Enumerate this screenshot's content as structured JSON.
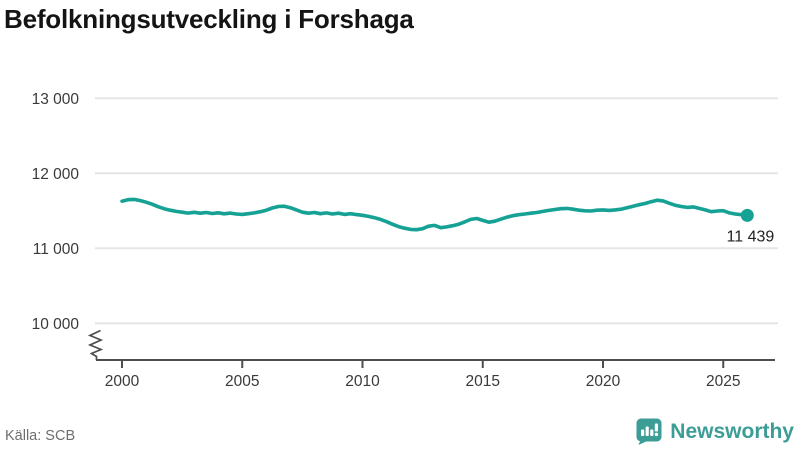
{
  "title": "Befolkningsutveckling i Forshaga",
  "source": "Källa: SCB",
  "brand": {
    "name": "Newsworthy",
    "icon": "newsworthy-bubble-barchart-icon",
    "color": "#3c9d97"
  },
  "colors": {
    "line": "#16a195",
    "grid": "#e5e5e5",
    "axis": "#4d4d4d",
    "tick_text": "#3a3a3a",
    "end_label_text": "#222222"
  },
  "chart_data": {
    "type": "line",
    "title": "Befolkningsutveckling i Forshaga",
    "xlabel": "",
    "ylabel": "",
    "grid": "horizontal",
    "legend": "none",
    "axis_break": true,
    "x_ticks": [
      2000,
      2005,
      2010,
      2015,
      2020,
      2025
    ],
    "x_tick_labels": [
      "2000",
      "2005",
      "2010",
      "2015",
      "2020",
      "2025"
    ],
    "y_ticks": [
      10000,
      11000,
      12000,
      13000
    ],
    "y_tick_labels": [
      "10 000",
      "11 000",
      "12 000",
      "13 000"
    ],
    "end_value": 11439,
    "end_label": "11 439",
    "series": [
      {
        "name": "Befolkning",
        "x_start": 2000.0,
        "x_step": 0.25,
        "values": [
          11628,
          11648,
          11652,
          11638,
          11615,
          11588,
          11555,
          11528,
          11508,
          11492,
          11482,
          11470,
          11480,
          11468,
          11478,
          11464,
          11474,
          11460,
          11470,
          11458,
          11452,
          11462,
          11472,
          11488,
          11508,
          11538,
          11558,
          11562,
          11542,
          11512,
          11482,
          11468,
          11478,
          11462,
          11472,
          11458,
          11468,
          11452,
          11462,
          11450,
          11440,
          11425,
          11408,
          11385,
          11355,
          11320,
          11290,
          11268,
          11252,
          11248,
          11262,
          11295,
          11305,
          11275,
          11285,
          11302,
          11322,
          11352,
          11385,
          11398,
          11372,
          11348,
          11362,
          11388,
          11415,
          11435,
          11448,
          11458,
          11468,
          11478,
          11492,
          11505,
          11518,
          11528,
          11532,
          11522,
          11508,
          11500,
          11498,
          11508,
          11512,
          11505,
          11512,
          11522,
          11542,
          11562,
          11582,
          11598,
          11622,
          11642,
          11632,
          11602,
          11575,
          11558,
          11545,
          11552,
          11532,
          11512,
          11488,
          11498,
          11502,
          11472,
          11458,
          11448,
          11439
        ]
      }
    ]
  }
}
